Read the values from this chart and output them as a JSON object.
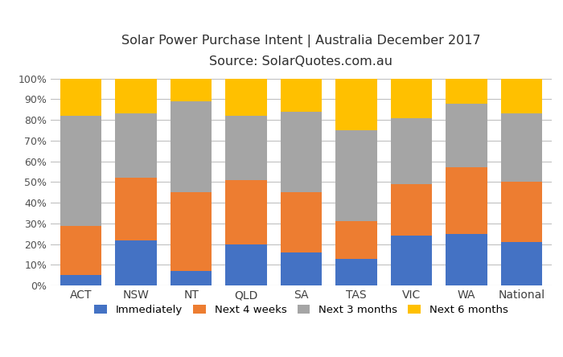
{
  "categories": [
    "ACT",
    "NSW",
    "NT",
    "QLD",
    "SA",
    "TAS",
    "VIC",
    "WA",
    "National"
  ],
  "immediately": [
    5,
    22,
    7,
    20,
    16,
    13,
    24,
    25,
    21
  ],
  "next_4_weeks": [
    24,
    30,
    38,
    31,
    29,
    18,
    25,
    32,
    29
  ],
  "next_3_months": [
    53,
    31,
    44,
    31,
    39,
    44,
    32,
    31,
    33
  ],
  "next_6_months": [
    18,
    17,
    11,
    18,
    16,
    25,
    19,
    12,
    17
  ],
  "colors": {
    "immediately": "#4472c4",
    "next_4_weeks": "#ed7d31",
    "next_3_months": "#a5a5a5",
    "next_6_months": "#ffc000"
  },
  "title_line1": "Solar Power Purchase Intent | Australia December 2017",
  "title_line2": "Source: SolarQuotes.com.au",
  "ylim": [
    0,
    100
  ],
  "ytick_labels": [
    "0%",
    "10%",
    "20%",
    "30%",
    "40%",
    "50%",
    "60%",
    "70%",
    "80%",
    "90%",
    "100%"
  ],
  "legend_labels": [
    "Immediately",
    "Next 4 weeks",
    "Next 3 months",
    "Next 6 months"
  ],
  "background_color": "#ffffff",
  "grid_color": "#c0c0c0"
}
